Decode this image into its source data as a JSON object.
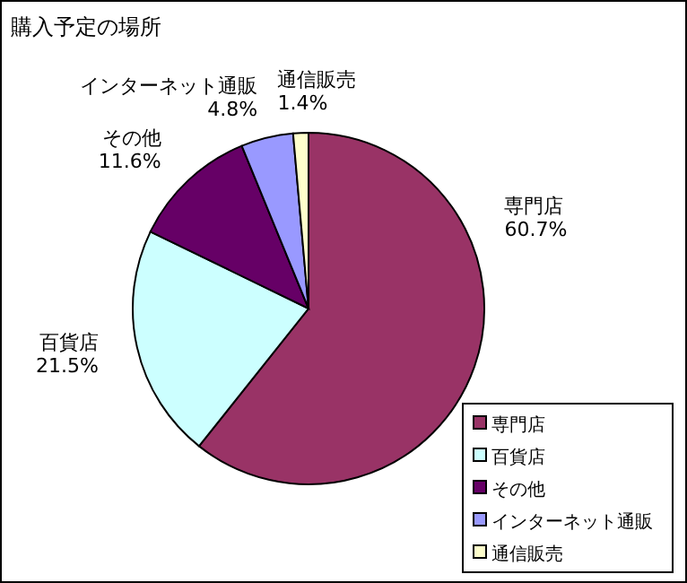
{
  "chart_data": {
    "type": "pie",
    "title": "購入予定の場所",
    "categories": [
      "専門店",
      "百貨店",
      "その他",
      "インターネット通販",
      "通信販売"
    ],
    "values": [
      60.7,
      21.5,
      11.6,
      4.8,
      1.4
    ],
    "value_labels": [
      "60.7%",
      "21.5%",
      "11.6%",
      "4.8%",
      "1.4%"
    ],
    "colors": [
      "#993366",
      "#ccffff",
      "#660066",
      "#9999ff",
      "#ffffcc"
    ],
    "legend": "bottom right"
  }
}
